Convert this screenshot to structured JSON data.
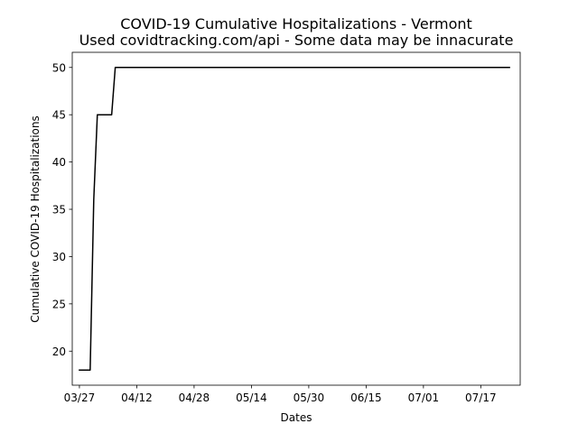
{
  "chart_data": {
    "type": "line",
    "title": "COVID-19 Cumulative Hospitalizations - Vermont",
    "subtitle": "Used covidtracking.com/api - Some data may be innacurate",
    "xlabel": "Dates",
    "ylabel": "Cumulative COVID-19 Hospitalizations",
    "x_tick_labels": [
      "03/27",
      "04/12",
      "04/28",
      "05/14",
      "05/30",
      "06/15",
      "07/01",
      "07/17"
    ],
    "y_ticks": [
      20,
      25,
      30,
      35,
      40,
      45,
      50
    ],
    "ylim": [
      16.4,
      51.6
    ],
    "xlim": [
      "2020-03-25",
      "2020-07-28"
    ],
    "grid": false,
    "line_color": "#000000",
    "series": [
      {
        "points": [
          {
            "x": "2020-03-27",
            "y": 18
          },
          {
            "x": "2020-03-30",
            "y": 18
          },
          {
            "x": "2020-03-31",
            "y": 36
          },
          {
            "x": "2020-04-01",
            "y": 45
          },
          {
            "x": "2020-04-05",
            "y": 45
          },
          {
            "x": "2020-04-06",
            "y": 50
          },
          {
            "x": "2020-07-25",
            "y": 50
          }
        ]
      }
    ]
  }
}
